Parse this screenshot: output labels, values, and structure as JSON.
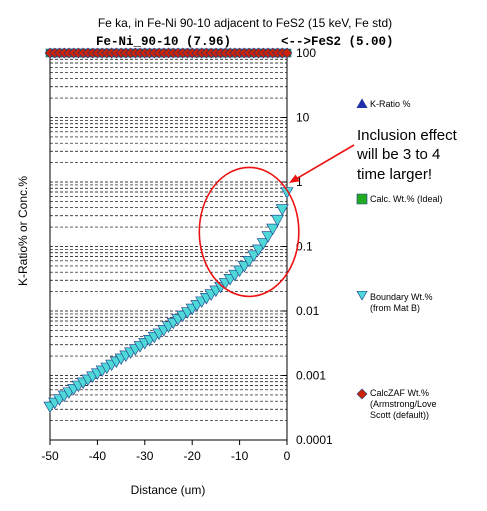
{
  "chart_data": {
    "type": "scatter",
    "title": "Fe ka, in Fe-Ni 90-10 adjacent to FeS2 (15 keV, Fe std)",
    "subtitle_left": "Fe-Ni_90-10 (7.96)",
    "subtitle_arrow": "<-->",
    "subtitle_right": "FeS2 (5.00)",
    "xlabel": "Distance (um)",
    "ylabel": "K-Ratio% or Conc.%",
    "xlim": [
      -50,
      0
    ],
    "ylim": [
      0.0001,
      100
    ],
    "yscale": "log",
    "grid": "horizontal-dashed",
    "legend_position": "right",
    "x_ticks": [
      "-50",
      "-40",
      "-30",
      "-20",
      "-10",
      "0"
    ],
    "y_ticks": [
      "0.0001",
      "0.001",
      "0.01",
      "0.1",
      "1",
      "10",
      "100"
    ],
    "series": [
      {
        "name": "K-Ratio %",
        "marker": "triangle-up",
        "color": "#1f2fb0",
        "x": [],
        "y": []
      },
      {
        "name": "Calc. Wt.% (Ideal)",
        "marker": "square",
        "color": "#22aa22",
        "x": [
          -50,
          -49,
          -48,
          -47,
          -46,
          -45,
          -44,
          -43,
          -42,
          -41,
          -40,
          -39,
          -38,
          -37,
          -36,
          -35,
          -34,
          -33,
          -32,
          -31,
          -30,
          -29,
          -28,
          -27,
          -26,
          -25,
          -24,
          -23,
          -22,
          -21,
          -20,
          -19,
          -18,
          -17,
          -16,
          -15,
          -14,
          -13,
          -12,
          -11,
          -10,
          -9,
          -8,
          -7,
          -6,
          -5,
          -4,
          -3,
          -2,
          -1,
          0
        ],
        "y": [
          100,
          100,
          100,
          100,
          100,
          100,
          100,
          100,
          100,
          100,
          100,
          100,
          100,
          100,
          100,
          100,
          100,
          100,
          100,
          100,
          100,
          100,
          100,
          100,
          100,
          100,
          100,
          100,
          100,
          100,
          100,
          100,
          100,
          100,
          100,
          100,
          100,
          100,
          100,
          100,
          100,
          100,
          100,
          100,
          100,
          100,
          100,
          100,
          100,
          100,
          100
        ]
      },
      {
        "name": "Boundary Wt.% (from Mat B)",
        "name_line1": "Boundary Wt.%",
        "name_line2": "(from Mat B)",
        "marker": "triangle-down",
        "color": "#4fd8d8",
        "x": [
          -50,
          -49,
          -48,
          -47,
          -46,
          -45,
          -44,
          -43,
          -42,
          -41,
          -40,
          -39,
          -38,
          -37,
          -36,
          -35,
          -34,
          -33,
          -32,
          -31,
          -30,
          -29,
          -28,
          -27,
          -26,
          -25,
          -24,
          -23,
          -22,
          -21,
          -20,
          -19,
          -18,
          -17,
          -16,
          -15,
          -14,
          -13,
          -12,
          -11,
          -10,
          -9,
          -8,
          -7,
          -6,
          -5,
          -4,
          -3,
          -2,
          -1,
          0
        ],
        "y": [
          0.00033,
          0.00038,
          0.00043,
          0.00049,
          0.00055,
          0.00062,
          0.0007,
          0.00078,
          0.00087,
          0.00097,
          0.00108,
          0.0012,
          0.00133,
          0.00148,
          0.00165,
          0.00184,
          0.00205,
          0.00229,
          0.00256,
          0.00286,
          0.0032,
          0.00358,
          0.004,
          0.0045,
          0.0051,
          0.0058,
          0.0066,
          0.0075,
          0.0085,
          0.0096,
          0.0109,
          0.0124,
          0.0141,
          0.016,
          0.0182,
          0.0208,
          0.0238,
          0.0273,
          0.0315,
          0.0365,
          0.0425,
          0.05,
          0.06,
          0.073,
          0.09,
          0.113,
          0.145,
          0.19,
          0.26,
          0.38,
          0.7
        ]
      },
      {
        "name": "CalcZAF Wt.% (Armstrong/Love Scott (default))",
        "name_line1": "CalcZAF Wt.%",
        "name_line2": "(Armstrong/Love",
        "name_line3": "Scott (default))",
        "marker": "diamond",
        "color": "#cc2200",
        "x": [
          -50,
          -49,
          -48,
          -47,
          -46,
          -45,
          -44,
          -43,
          -42,
          -41,
          -40,
          -39,
          -38,
          -37,
          -36,
          -35,
          -34,
          -33,
          -32,
          -31,
          -30,
          -29,
          -28,
          -27,
          -26,
          -25,
          -24,
          -23,
          -22,
          -21,
          -20,
          -19,
          -18,
          -17,
          -16,
          -15,
          -14,
          -13,
          -12,
          -11,
          -10,
          -9,
          -8,
          -7,
          -6,
          -5,
          -4,
          -3,
          -2,
          -1,
          0
        ],
        "y": [
          100,
          100,
          100,
          100,
          100,
          100,
          100,
          100,
          100,
          100,
          100,
          100,
          100,
          100,
          100,
          100,
          100,
          100,
          100,
          100,
          100,
          100,
          100,
          100,
          100,
          100,
          100,
          100,
          100,
          100,
          100,
          100,
          100,
          100,
          100,
          100,
          100,
          100,
          100,
          100,
          100,
          100,
          100,
          100,
          100,
          100,
          100,
          100,
          100,
          100,
          100
        ]
      }
    ],
    "annotation": {
      "line1": "Inclusion effect",
      "line2": "will be 3 to 4",
      "line3": "time larger!",
      "color": "#ee1111",
      "points_to": {
        "x": 0,
        "y": 0.9
      },
      "ellipse": {
        "x_center": -8,
        "y_center": 0.15,
        "x_halfwidth": 5,
        "decades_up": 1.05,
        "decades_down": 0.95
      }
    }
  }
}
